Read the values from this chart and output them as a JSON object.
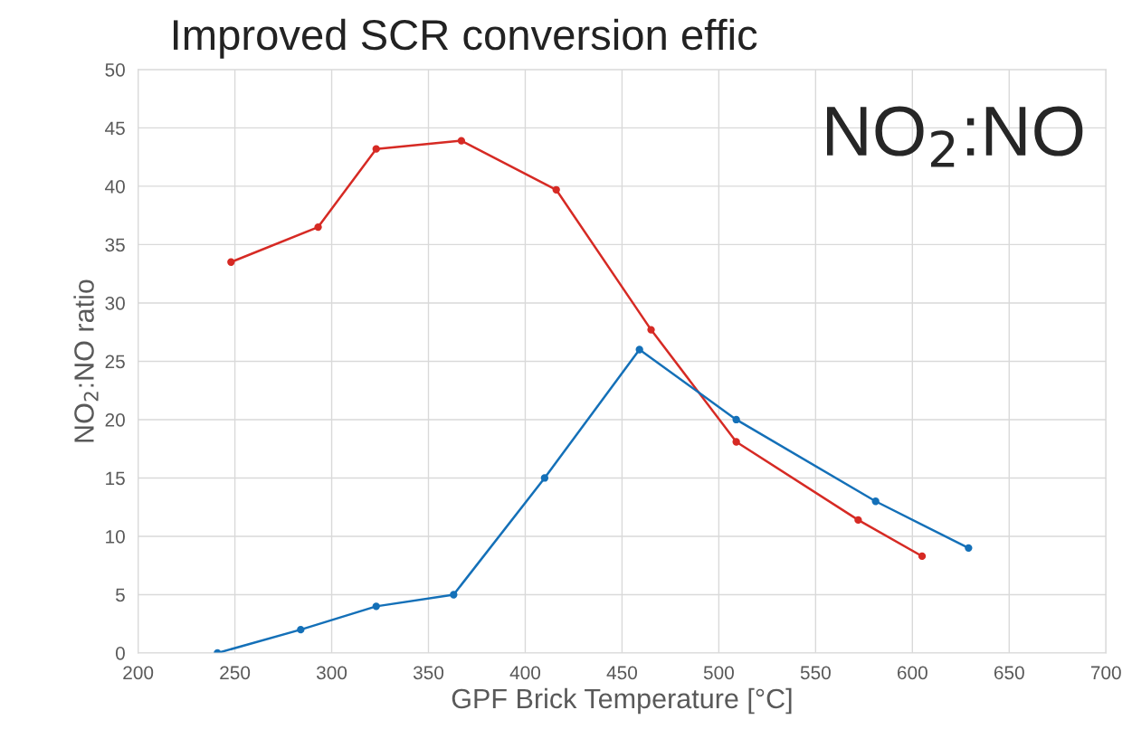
{
  "chart_data": {
    "type": "line",
    "title": "Improved SCR conversion effic",
    "xlabel": "GPF Brick Temperature [°C]",
    "ylabel": "NO$_{2}$:NO ratio",
    "annotations": [
      "NO$_{2}$:NO"
    ],
    "series": [
      {
        "color": "#d62a24",
        "x": [
          248,
          293,
          323,
          367,
          416,
          465,
          509,
          572,
          605
        ],
        "values": [
          33.5,
          36.5,
          43.2,
          43.9,
          39.7,
          27.7,
          18.1,
          11.4,
          8.3
        ]
      },
      {
        "color": "#1470b8",
        "x": [
          241,
          284,
          323,
          363,
          410,
          459,
          509,
          581,
          629
        ],
        "values": [
          0,
          2,
          4,
          5,
          15,
          26,
          20,
          13,
          9
        ]
      }
    ],
    "xlim": [
      200,
      700
    ],
    "xticks": [
      200,
      250,
      300,
      350,
      400,
      450,
      500,
      550,
      600,
      650,
      700
    ],
    "ylim": [
      0,
      50
    ],
    "yticks": [
      0,
      5,
      10,
      15,
      20,
      25,
      30,
      35,
      40,
      45,
      50
    ],
    "grid": true,
    "marker": "circle",
    "line_style": "solid"
  }
}
